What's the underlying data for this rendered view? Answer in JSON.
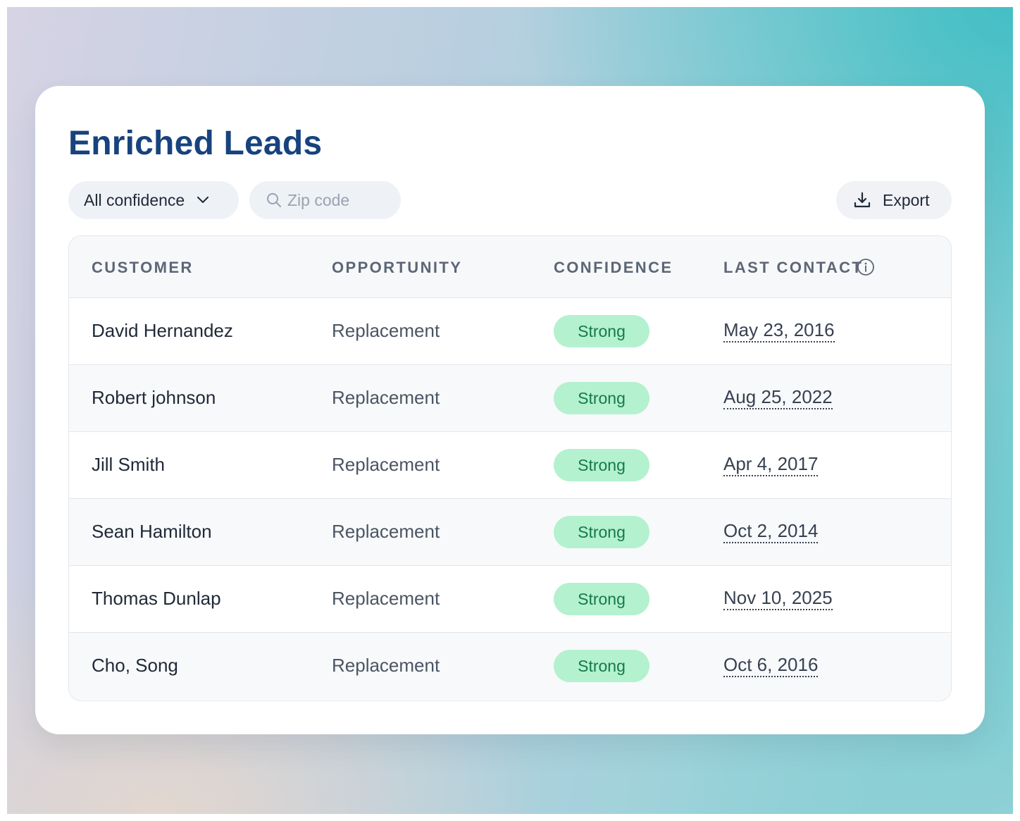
{
  "page": {
    "title": "Enriched Leads"
  },
  "toolbar": {
    "confidence_filter": "All confidence",
    "search_placeholder": "Zip code",
    "export_label": "Export"
  },
  "table": {
    "columns": [
      "CUSTOMER",
      "OPPORTUNITY",
      "CONFIDENCE",
      "LAST CONTACT"
    ],
    "rows": [
      {
        "customer": "David Hernandez",
        "opportunity": "Replacement",
        "confidence": "Strong",
        "last_contact": "May 23, 2016"
      },
      {
        "customer": "Robert johnson",
        "opportunity": "Replacement",
        "confidence": "Strong",
        "last_contact": "Aug 25, 2022"
      },
      {
        "customer": "Jill Smith",
        "opportunity": "Replacement",
        "confidence": "Strong",
        "last_contact": "Apr 4, 2017"
      },
      {
        "customer": "Sean Hamilton",
        "opportunity": "Replacement",
        "confidence": "Strong",
        "last_contact": "Oct 2, 2014"
      },
      {
        "customer": "Thomas Dunlap",
        "opportunity": "Replacement",
        "confidence": "Strong",
        "last_contact": "Nov 10, 2025"
      },
      {
        "customer": "Cho, Song",
        "opportunity": "Replacement",
        "confidence": "Strong",
        "last_contact": "Oct 6, 2016"
      }
    ]
  },
  "icons": {
    "filter": "chevron-down-icon",
    "search": "search-icon",
    "export": "download-icon",
    "column_info": "info-icon"
  },
  "colors": {
    "title": "#17437e",
    "badge_bg": "#b4f1cf",
    "badge_text": "#157a4a"
  }
}
